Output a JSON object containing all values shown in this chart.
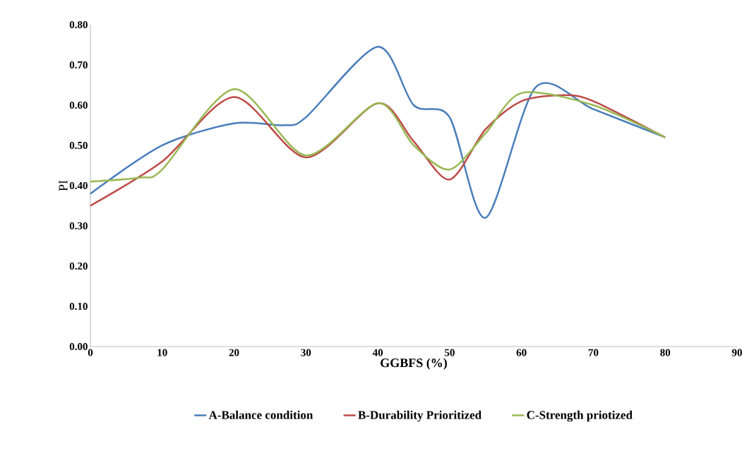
{
  "chart_data": {
    "type": "line",
    "xlabel": "GGBFS (%)",
    "ylabel": "PI",
    "xlim": [
      0,
      90
    ],
    "xticks": [
      0,
      10,
      20,
      30,
      40,
      50,
      60,
      70,
      80,
      90
    ],
    "ylim": [
      0,
      0.8
    ],
    "yticks": [
      {
        "value": 0,
        "label": "0.00"
      },
      {
        "value": 0.1,
        "label": "0.10"
      },
      {
        "value": 0.2,
        "label": "0.20"
      },
      {
        "value": 0.3,
        "label": "0.30"
      },
      {
        "value": 0.4,
        "label": "0.40"
      },
      {
        "value": 0.5,
        "label": "0.50"
      },
      {
        "value": 0.6,
        "label": "0.60"
      },
      {
        "value": 0.7,
        "label": "0.70"
      },
      {
        "value": 0.8,
        "label": "0.80"
      }
    ],
    "grid": false,
    "legend": "bottom",
    "marker": "none",
    "line_style": "solid",
    "series": [
      {
        "name": "A-Balance condition",
        "color": "#4a7ebb",
        "x": [
          0,
          10,
          20,
          27,
          30,
          40,
          45,
          50,
          55,
          62,
          70,
          80
        ],
        "values": [
          0.38,
          0.5,
          0.555,
          0.55,
          0.57,
          0.745,
          0.6,
          0.57,
          0.32,
          0.645,
          0.59,
          0.52
        ]
      },
      {
        "name": "B-Durability Prioritized",
        "color": "#be4b48",
        "x": [
          0,
          10,
          20,
          30,
          40,
          45,
          50,
          55,
          60,
          66,
          70,
          80
        ],
        "values": [
          0.35,
          0.46,
          0.62,
          0.47,
          0.605,
          0.51,
          0.415,
          0.54,
          0.61,
          0.625,
          0.61,
          0.52
        ]
      },
      {
        "name": "C-Strength priotized",
        "color": "#98b954",
        "x": [
          0,
          7,
          10,
          20,
          30,
          40,
          45,
          50,
          55,
          60,
          70,
          80
        ],
        "values": [
          0.41,
          0.42,
          0.44,
          0.64,
          0.475,
          0.605,
          0.5,
          0.44,
          0.53,
          0.63,
          0.6,
          0.52
        ]
      }
    ]
  }
}
